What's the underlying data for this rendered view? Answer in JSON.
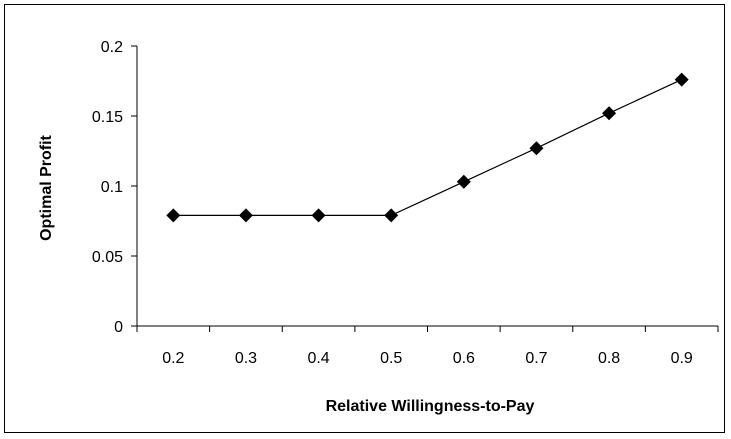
{
  "chart_data": {
    "type": "line",
    "x": [
      0.2,
      0.3,
      0.4,
      0.5,
      0.6,
      0.7,
      0.8,
      0.9
    ],
    "series": [
      {
        "values": [
          0.079,
          0.079,
          0.079,
          0.079,
          0.103,
          0.127,
          0.152,
          0.176
        ]
      }
    ],
    "xlabel": "Relative Willingness-to-Pay",
    "ylabel": "Optimal Profit",
    "x_ticks": [
      "0.2",
      "0.3",
      "0.4",
      "0.5",
      "0.6",
      "0.7",
      "0.8",
      "0.9"
    ],
    "y_ticks": [
      "0",
      "0.05",
      "0.1",
      "0.15",
      "0.2"
    ],
    "y_tick_values": [
      0,
      0.05,
      0.1,
      0.15,
      0.2
    ],
    "ylim": [
      0,
      0.2
    ],
    "grid": false,
    "marker": "diamond",
    "colors": {
      "line": "#000000",
      "marker": "#000000"
    }
  }
}
